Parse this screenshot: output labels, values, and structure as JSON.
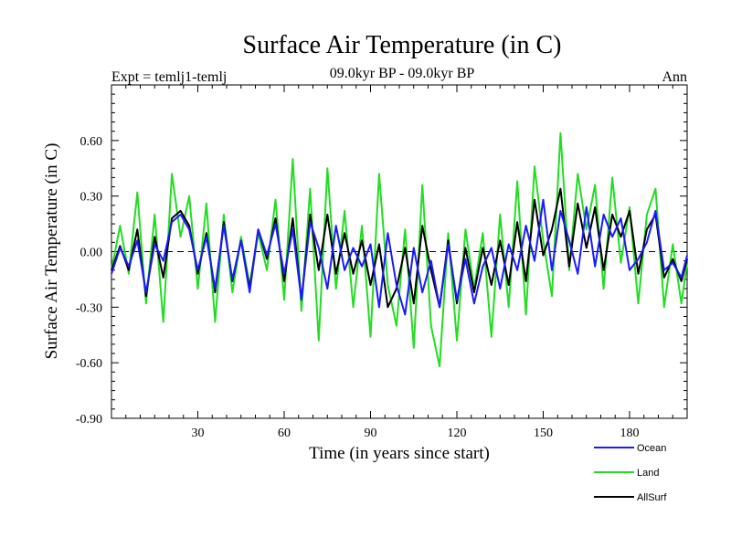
{
  "chart_data": {
    "type": "line",
    "title": "Surface Air Temperature (in C)",
    "subtitle_left": "Expt = temlj1-temlj",
    "subtitle_center": "09.0kyr BP - 09.0kyr BP",
    "subtitle_right": "Ann",
    "xlabel": "Time (in years since start)",
    "ylabel": "Surface Air Temperature (in C)",
    "xlim": [
      0,
      200
    ],
    "ylim": [
      -0.9,
      0.9
    ],
    "xticks": [
      30,
      60,
      90,
      120,
      150,
      180
    ],
    "xtick_labels": [
      "30",
      "60",
      "90",
      "120",
      "150",
      "180"
    ],
    "yticks": [
      -0.9,
      -0.6,
      -0.3,
      0.0,
      0.3,
      0.6
    ],
    "ytick_labels": [
      "-0.90",
      "-0.60",
      "-0.30",
      "0.00",
      "0.30",
      "0.60"
    ],
    "reference_line": 0.0,
    "x": [
      0,
      3,
      6,
      9,
      12,
      15,
      18,
      21,
      24,
      27,
      30,
      33,
      36,
      39,
      42,
      45,
      48,
      51,
      54,
      57,
      60,
      63,
      66,
      69,
      72,
      75,
      78,
      81,
      84,
      87,
      90,
      93,
      96,
      99,
      102,
      105,
      108,
      111,
      114,
      117,
      120,
      123,
      126,
      129,
      132,
      135,
      138,
      141,
      144,
      147,
      150,
      153,
      156,
      159,
      162,
      165,
      168,
      171,
      174,
      177,
      180,
      183,
      186,
      189,
      192,
      195,
      198,
      200
    ],
    "series": [
      {
        "name": "Ocean",
        "color": "#1a1aff",
        "values": [
          -0.12,
          0.02,
          -0.08,
          0.06,
          -0.22,
          0.04,
          -0.05,
          0.16,
          0.2,
          0.12,
          -0.1,
          0.08,
          -0.2,
          0.14,
          -0.15,
          0.06,
          -0.22,
          0.12,
          -0.02,
          0.15,
          -0.12,
          0.12,
          -0.26,
          0.16,
          0.02,
          -0.2,
          0.14,
          -0.1,
          0.02,
          -0.08,
          0.04,
          -0.3,
          0.1,
          -0.18,
          -0.34,
          0.02,
          -0.22,
          -0.05,
          -0.3,
          0.04,
          -0.26,
          -0.04,
          -0.28,
          -0.08,
          0.02,
          -0.2,
          0.04,
          -0.1,
          0.14,
          -0.05,
          0.28,
          -0.1,
          0.22,
          0.06,
          -0.12,
          0.24,
          -0.08,
          0.2,
          0.08,
          0.18,
          -0.1,
          -0.04,
          0.05,
          0.22,
          -0.1,
          -0.06,
          -0.14,
          -0.02
        ]
      },
      {
        "name": "Land",
        "color": "#22dd22",
        "values": [
          -0.1,
          0.14,
          -0.12,
          0.32,
          -0.28,
          0.2,
          -0.38,
          0.42,
          0.08,
          0.3,
          -0.2,
          0.26,
          -0.38,
          0.2,
          -0.22,
          0.08,
          -0.18,
          0.1,
          -0.1,
          0.28,
          -0.26,
          0.5,
          -0.32,
          0.34,
          -0.48,
          0.45,
          -0.2,
          0.22,
          -0.3,
          0.14,
          -0.46,
          0.42,
          -0.18,
          -0.4,
          0.12,
          -0.52,
          0.36,
          -0.4,
          -0.62,
          0.1,
          -0.48,
          0.12,
          -0.2,
          0.1,
          -0.46,
          0.2,
          -0.3,
          0.38,
          -0.34,
          0.46,
          0.06,
          -0.24,
          0.64,
          -0.1,
          0.42,
          0.12,
          0.36,
          -0.2,
          0.4,
          -0.06,
          0.24,
          -0.28,
          0.2,
          0.34,
          -0.3,
          0.04,
          -0.28,
          -0.06
        ]
      },
      {
        "name": "AllSurf",
        "color": "#000000",
        "values": [
          -0.1,
          0.03,
          -0.1,
          0.12,
          -0.24,
          0.08,
          -0.14,
          0.18,
          0.22,
          0.14,
          -0.12,
          0.1,
          -0.22,
          0.16,
          -0.16,
          0.06,
          -0.2,
          0.12,
          -0.04,
          0.18,
          -0.16,
          0.18,
          -0.26,
          0.2,
          -0.1,
          0.2,
          -0.12,
          0.1,
          -0.12,
          0.06,
          -0.18,
          0.04,
          -0.3,
          -0.2,
          0.02,
          -0.28,
          0.14,
          -0.1,
          -0.3,
          0.06,
          -0.28,
          0.02,
          -0.22,
          0.02,
          -0.18,
          0.06,
          -0.18,
          0.16,
          -0.16,
          0.28,
          -0.02,
          0.12,
          0.34,
          -0.08,
          0.26,
          0.02,
          0.24,
          -0.1,
          0.2,
          0.08,
          0.22,
          -0.12,
          0.12,
          0.2,
          -0.14,
          -0.04,
          -0.16,
          -0.04
        ]
      }
    ],
    "legend_position": "bottom-right"
  }
}
